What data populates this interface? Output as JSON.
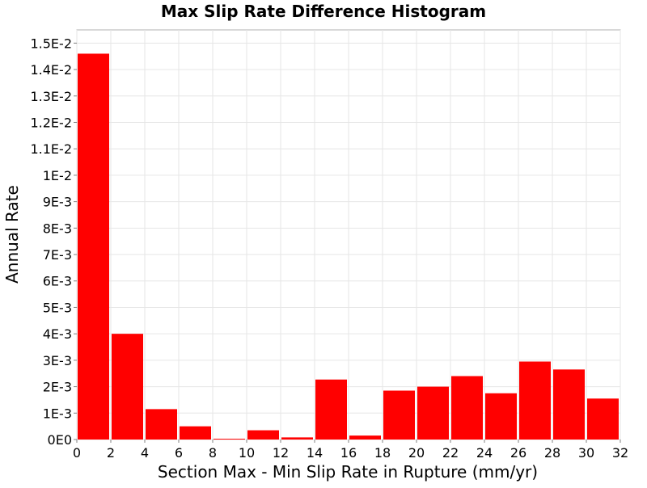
{
  "chart_data": {
    "type": "bar",
    "title": "Max Slip Rate Difference Histogram",
    "xlabel": "Section Max - Min Slip Rate in Rupture (mm/yr)",
    "ylabel": "Annual Rate",
    "xlim": [
      0,
      32
    ],
    "ylim": [
      0,
      0.0155
    ],
    "x_ticks": [
      0,
      2,
      4,
      6,
      8,
      10,
      12,
      14,
      16,
      18,
      20,
      22,
      24,
      26,
      28,
      30,
      32
    ],
    "x_tick_labels": [
      "0",
      "2",
      "4",
      "6",
      "8",
      "10",
      "12",
      "14",
      "16",
      "18",
      "20",
      "22",
      "24",
      "26",
      "28",
      "30",
      "32"
    ],
    "y_ticks": [
      0,
      0.001,
      0.002,
      0.003,
      0.004,
      0.005,
      0.006,
      0.007,
      0.008,
      0.009,
      0.01,
      0.011,
      0.012,
      0.013,
      0.014,
      0.015
    ],
    "y_tick_labels": [
      "0E0",
      "1E-3",
      "2E-3",
      "3E-3",
      "4E-3",
      "5E-3",
      "6E-3",
      "7E-3",
      "8E-3",
      "9E-3",
      "1E-2",
      "1.1E-2",
      "1.2E-2",
      "1.3E-2",
      "1.4E-2",
      "1.5E-2"
    ],
    "bin_width": 2,
    "bin_starts": [
      0,
      2,
      4,
      6,
      8,
      10,
      12,
      14,
      16,
      18,
      20,
      22,
      24,
      26,
      28,
      30
    ],
    "values": [
      0.0146,
      0.004,
      0.00115,
      0.0005,
      3e-05,
      0.00035,
      8e-05,
      0.00227,
      0.00015,
      0.00185,
      0.002,
      0.0024,
      0.00175,
      0.00295,
      0.00265,
      0.00155
    ],
    "bar_color": "#ff0000",
    "grid": true,
    "legend": "none"
  }
}
